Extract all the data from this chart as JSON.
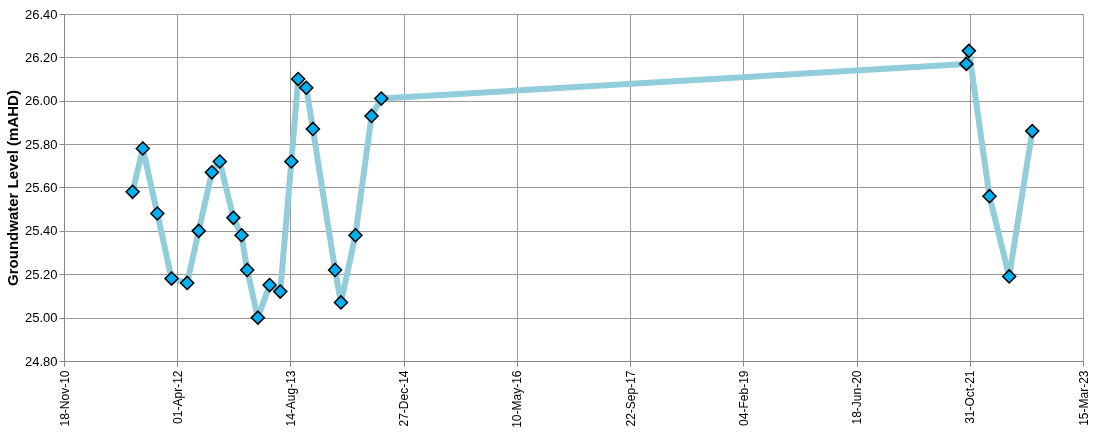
{
  "chart_data": {
    "type": "line",
    "ylabel": "Groundwater Level (mAHD)",
    "x": [
      "2011-09-17",
      "2011-11-01",
      "2012-01-04",
      "2012-03-07",
      "2012-05-15",
      "2012-07-05",
      "2012-09-01",
      "2012-10-06",
      "2012-12-05",
      "2013-01-10",
      "2013-02-04",
      "2013-03-23",
      "2013-05-14",
      "2013-06-30",
      "2013-08-18",
      "2013-09-17",
      "2013-10-23",
      "2013-11-21",
      "2014-02-27",
      "2014-03-25",
      "2014-05-28",
      "2014-08-07",
      "2014-09-19",
      "2021-10-16",
      "2021-10-27",
      "2022-01-26",
      "2022-04-23",
      "2022-08-03"
    ],
    "series": [
      {
        "color": "#92cddc",
        "values": [
          25.58,
          25.78,
          25.48,
          25.18,
          25.16,
          25.4,
          25.67,
          25.72,
          25.46,
          25.38,
          25.22,
          25.0,
          25.15,
          25.12,
          25.72,
          26.1,
          26.06,
          25.87,
          25.22,
          25.07,
          25.38,
          25.93,
          26.01,
          26.17,
          26.23,
          25.56,
          25.19,
          25.86
        ]
      }
    ],
    "xlim": [
      "2010-11-18",
      "2023-03-15"
    ],
    "xticks": [
      {
        "value": "2010-11-18",
        "label": "18-Nov-10"
      },
      {
        "value": "2012-04-01",
        "label": "01-Apr-12"
      },
      {
        "value": "2013-08-14",
        "label": "14-Aug-13"
      },
      {
        "value": "2014-12-27",
        "label": "27-Dec-14"
      },
      {
        "value": "2016-05-10",
        "label": "10-May-16"
      },
      {
        "value": "2017-09-22",
        "label": "22-Sep-17"
      },
      {
        "value": "2019-02-04",
        "label": "04-Feb-19"
      },
      {
        "value": "2020-06-18",
        "label": "18-Jun-20"
      },
      {
        "value": "2021-10-31",
        "label": "31-Oct-21"
      },
      {
        "value": "2023-03-15",
        "label": "15-Mar-23"
      }
    ],
    "ylim": [
      24.8,
      26.4
    ],
    "yticks": [
      {
        "value": 24.8,
        "label": "24.80"
      },
      {
        "value": 25.0,
        "label": "25.00"
      },
      {
        "value": 25.2,
        "label": "25.20"
      },
      {
        "value": 25.4,
        "label": "25.40"
      },
      {
        "value": 25.6,
        "label": "25.60"
      },
      {
        "value": 25.8,
        "label": "25.80"
      },
      {
        "value": 26.0,
        "label": "26.00"
      },
      {
        "value": 26.2,
        "label": "26.20"
      },
      {
        "value": 26.4,
        "label": "26.40"
      }
    ],
    "grid": true,
    "marker": "diamond",
    "line_style": "solid"
  }
}
